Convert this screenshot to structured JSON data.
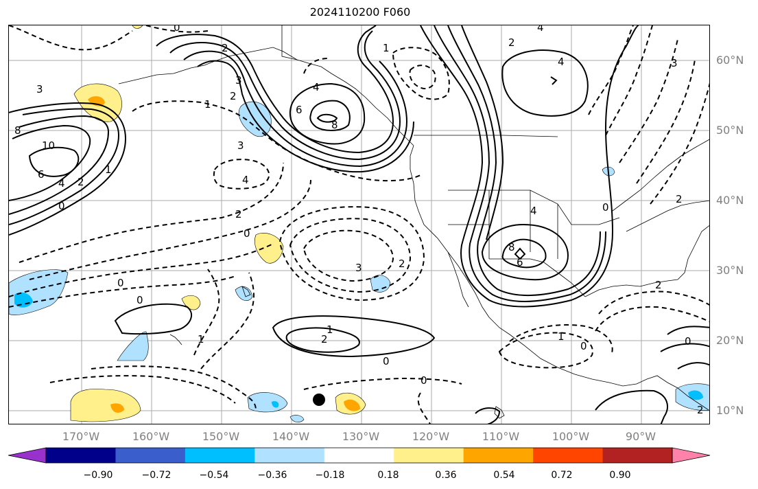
{
  "title": "2024110200 F060",
  "lat_labels": [
    "60°N",
    "50°N",
    "40°N",
    "30°N",
    "20°N",
    "10°N"
  ],
  "lon_labels": [
    "170°W",
    "160°W",
    "150°W",
    "140°W",
    "130°W",
    "120°W",
    "110°W",
    "100°W",
    "90°W"
  ],
  "colorbar": {
    "colors": [
      "#9932cc",
      "#00008b",
      "#3a5fcd",
      "#00bfff",
      "#b0e2ff",
      "#ffffff",
      "#fff08b",
      "#ffa500",
      "#ff4500",
      "#b22222",
      "#ff82ab"
    ],
    "ticks": [
      "−0.90",
      "−0.72",
      "−0.54",
      "−0.36",
      "−0.18",
      "0.18",
      "0.36",
      "0.54",
      "0.72",
      "0.90"
    ]
  },
  "contour_labels": [
    "0",
    "2",
    "1",
    "4",
    "2",
    "4",
    "3",
    "2",
    "1",
    "4",
    "6",
    "8",
    "3",
    "8",
    "10",
    "6",
    "4",
    "2",
    "0",
    "1",
    "3",
    "4",
    "2",
    "0",
    "0",
    "0",
    "1",
    "3",
    "2",
    "4",
    "8",
    "6",
    "1",
    "2",
    "0",
    "0",
    "1",
    "0",
    "2",
    "2",
    "0",
    "3",
    "2",
    "0"
  ],
  "storm_marker": "storm-center"
}
